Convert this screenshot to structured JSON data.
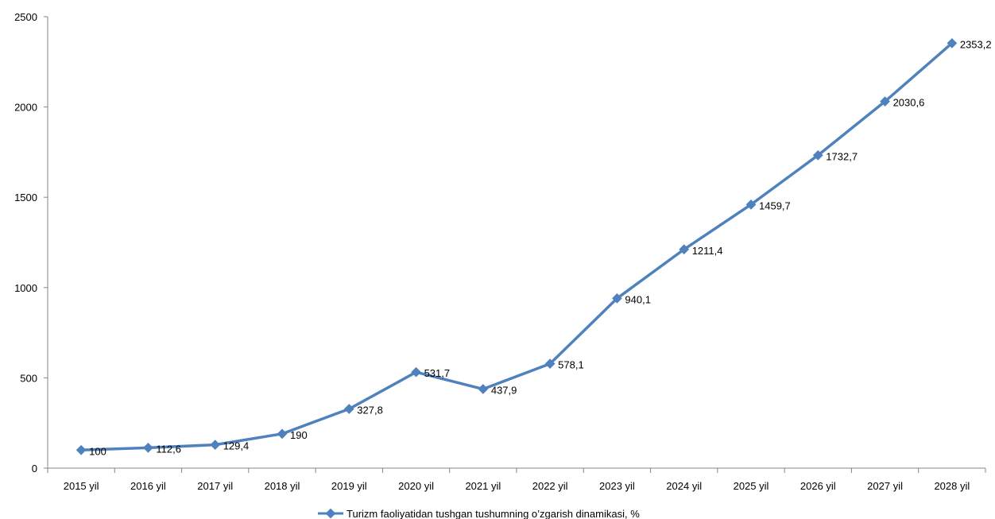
{
  "chart_data": {
    "type": "line",
    "categories": [
      "2015 yil",
      "2016 yil",
      "2017 yil",
      "2018 yil",
      "2019 yil",
      "2020 yil",
      "2021 yil",
      "2022 yil",
      "2023 yil",
      "2024 yil",
      "2025 yil",
      "2026 yil",
      "2027 yil",
      "2028 yil"
    ],
    "series": [
      {
        "name": "Turizm faoliyatidan tushgan tushumning o’zgarish dinamikasi, %",
        "values": [
          100,
          112.6,
          129.4,
          190,
          327.8,
          531.7,
          437.9,
          578.1,
          940.1,
          1211.4,
          1459.7,
          1732.7,
          2030.6,
          2353.2
        ],
        "labels": [
          "100",
          "112,6",
          "129,4",
          "190",
          "327,8",
          "531,7",
          "437,9",
          "578,1",
          "940,1",
          "1211,4",
          "1459,7",
          "1732,7",
          "2030,6",
          "2353,2"
        ],
        "color": "#4F81BD"
      }
    ],
    "yticks": [
      "0",
      "500",
      "1000",
      "1500",
      "2000",
      "2500"
    ],
    "ylim": [
      0,
      2500
    ],
    "title": "",
    "xlabel": "",
    "ylabel": "",
    "grid": false,
    "legend": "bottom"
  }
}
